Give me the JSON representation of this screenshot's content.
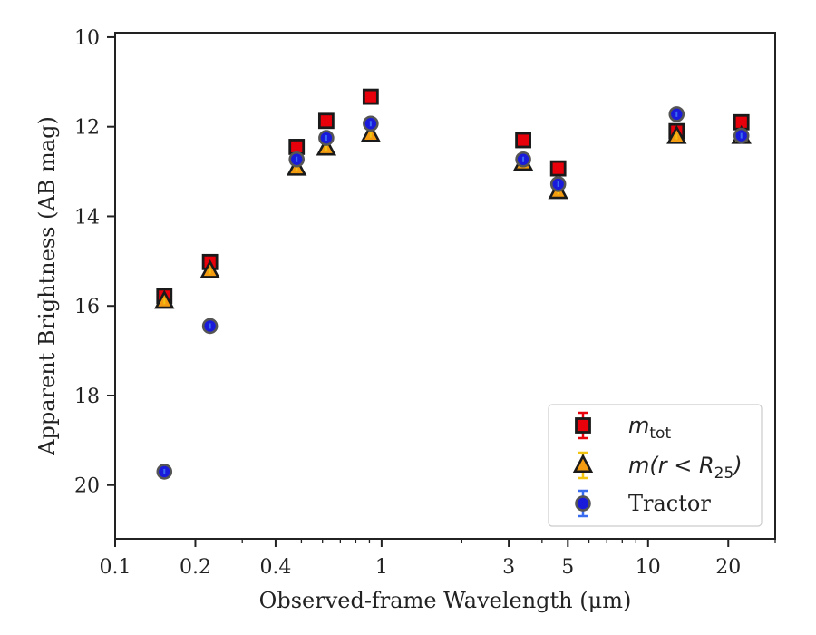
{
  "chart_data": {
    "type": "scatter",
    "xlabel": "Observed-frame Wavelength (μm)",
    "ylabel": "Apparent Brightness (AB mag)",
    "x_scale": "log",
    "xlim": [
      0.1,
      30
    ],
    "ylim": [
      21.2,
      9.9
    ],
    "y_inverted": true,
    "grid": false,
    "legend_position": "lower-right",
    "x_ticks": [
      {
        "value": 0.1,
        "label": "0.1"
      },
      {
        "value": 0.2,
        "label": "0.2"
      },
      {
        "value": 0.4,
        "label": "0.4"
      },
      {
        "value": 1,
        "label": "1"
      },
      {
        "value": 3,
        "label": "3"
      },
      {
        "value": 5,
        "label": "5"
      },
      {
        "value": 10,
        "label": "10"
      },
      {
        "value": 20,
        "label": "20"
      }
    ],
    "y_ticks": [
      {
        "value": 10,
        "label": "10"
      },
      {
        "value": 12,
        "label": "12"
      },
      {
        "value": 14,
        "label": "14"
      },
      {
        "value": 16,
        "label": "16"
      },
      {
        "value": 18,
        "label": "18"
      },
      {
        "value": 20,
        "label": "20"
      }
    ],
    "series": [
      {
        "name": "m_tot",
        "legend_main": "m",
        "legend_sub": "tot",
        "legend_rest": "",
        "marker": "square",
        "color": "#e8000b",
        "error_color": "#e8000b",
        "points": [
          {
            "x": 0.153,
            "y": 15.78
          },
          {
            "x": 0.227,
            "y": 15.02
          },
          {
            "x": 0.48,
            "y": 12.45
          },
          {
            "x": 0.62,
            "y": 11.87
          },
          {
            "x": 0.91,
            "y": 11.33
          },
          {
            "x": 3.4,
            "y": 12.3
          },
          {
            "x": 4.6,
            "y": 12.93
          },
          {
            "x": 12.8,
            "y": 12.1
          },
          {
            "x": 22.4,
            "y": 11.9
          }
        ]
      },
      {
        "name": "m(r < R25)",
        "legend_main": "m(r < R",
        "legend_sub": "25",
        "legend_rest": ")",
        "marker": "triangle",
        "color": "#f39c12",
        "error_color": "#f1c40f",
        "points": [
          {
            "x": 0.153,
            "y": 15.9
          },
          {
            "x": 0.227,
            "y": 15.22
          },
          {
            "x": 0.48,
            "y": 12.93
          },
          {
            "x": 0.62,
            "y": 12.48
          },
          {
            "x": 0.91,
            "y": 12.18
          },
          {
            "x": 3.4,
            "y": 12.82
          },
          {
            "x": 4.6,
            "y": 13.45
          },
          {
            "x": 12.8,
            "y": 12.22
          },
          {
            "x": 22.4,
            "y": 12.22
          }
        ]
      },
      {
        "name": "Tractor",
        "legend_main": "Tractor",
        "legend_sub": "",
        "legend_rest": "",
        "marker": "circle",
        "color": "#1a1adb",
        "error_color": "#3a6cf0",
        "points": [
          {
            "x": 0.153,
            "y": 19.7
          },
          {
            "x": 0.227,
            "y": 16.45
          },
          {
            "x": 0.48,
            "y": 12.73
          },
          {
            "x": 0.62,
            "y": 12.25
          },
          {
            "x": 0.91,
            "y": 11.93
          },
          {
            "x": 3.4,
            "y": 12.73
          },
          {
            "x": 4.6,
            "y": 13.28
          },
          {
            "x": 12.8,
            "y": 11.72
          },
          {
            "x": 22.4,
            "y": 12.2
          }
        ]
      }
    ]
  }
}
